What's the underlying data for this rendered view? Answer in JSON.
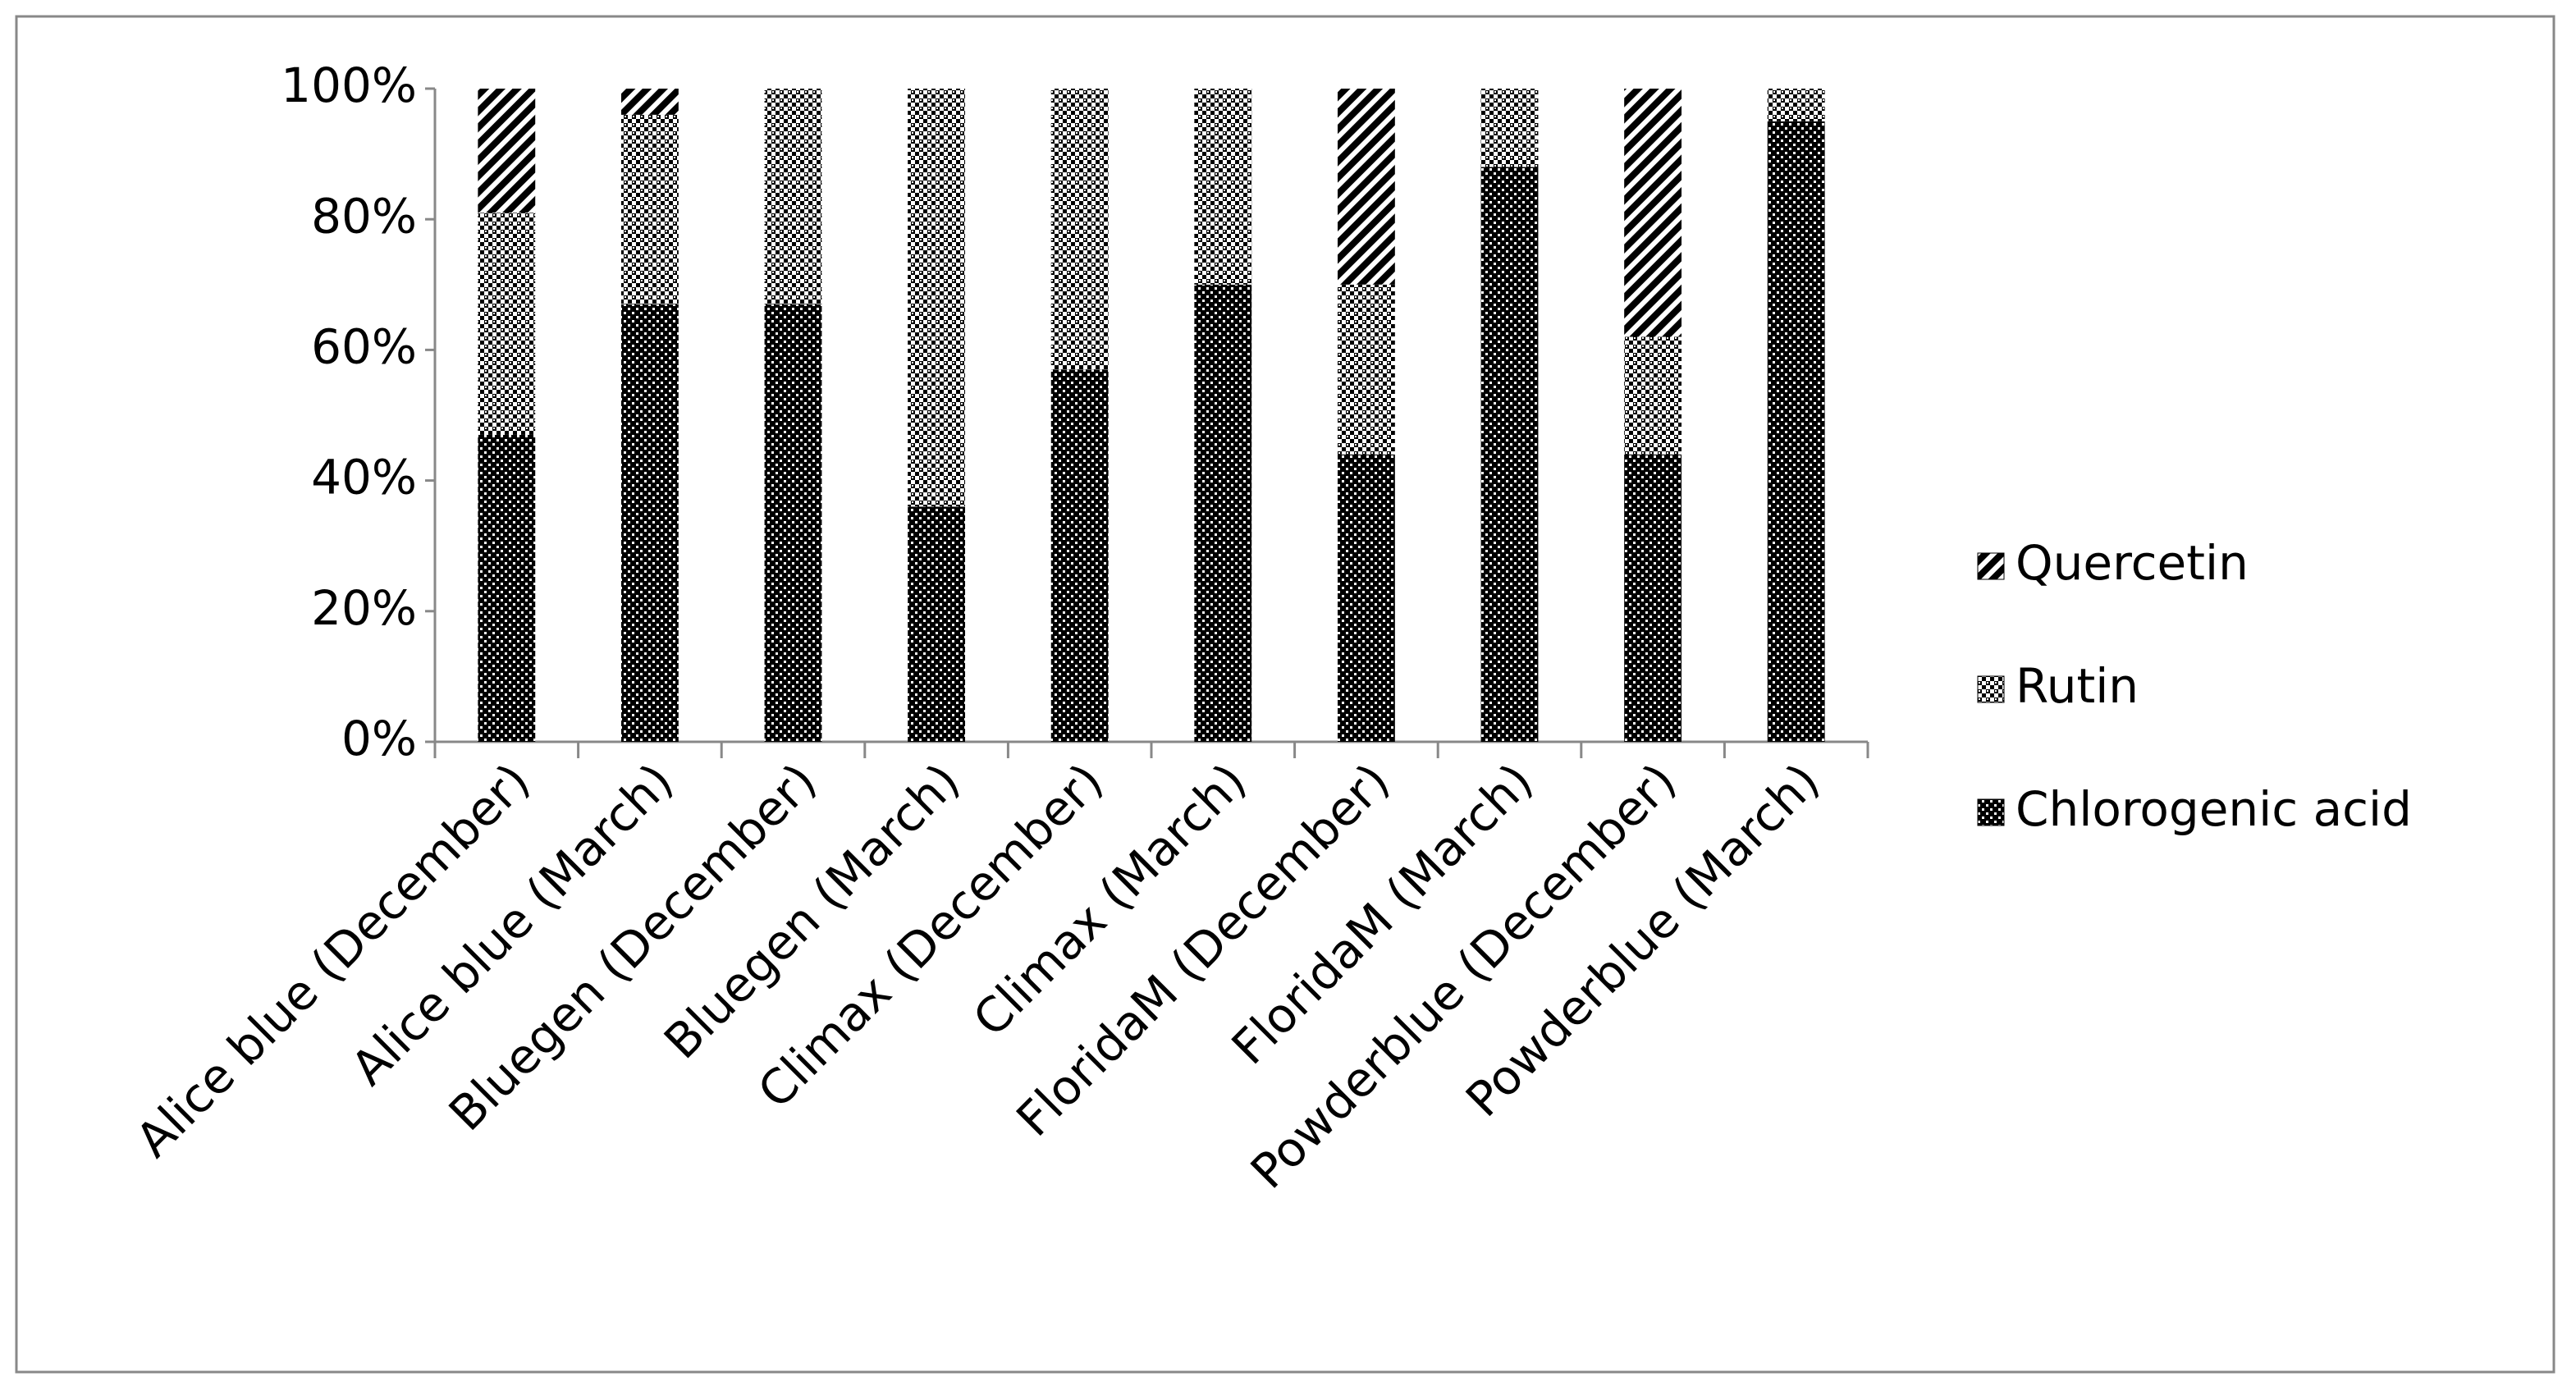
{
  "chart_data": {
    "type": "bar",
    "stacked": true,
    "categories": [
      "Alice blue (December)",
      "Alice blue (March)",
      "Bluegen (December)",
      "Bluegen (March)",
      "Climax (December)",
      "Climax (March)",
      "FloridaM (December)",
      "FloridaM (March)",
      "Powderblue (December)",
      "Powderblue (March)"
    ],
    "series": [
      {
        "name": "Chlorogenic acid",
        "color": "#000000",
        "pattern": "dense-checker",
        "values": [
          47,
          67,
          67,
          36,
          57,
          70,
          44,
          88,
          44,
          95
        ]
      },
      {
        "name": "Rutin",
        "color": "#000000",
        "pattern": "light-checker",
        "values": [
          34,
          29,
          33,
          64,
          43,
          30,
          26,
          12,
          18,
          5
        ]
      },
      {
        "name": "Quercetin",
        "color": "#000000",
        "pattern": "diagonal",
        "values": [
          19,
          4,
          0,
          0,
          0,
          0,
          30,
          0,
          38,
          0
        ]
      }
    ],
    "ylim": [
      0,
      100
    ],
    "yticks": [
      {
        "value": 0,
        "label": "0%"
      },
      {
        "value": 20,
        "label": "20%"
      },
      {
        "value": 40,
        "label": "40%"
      },
      {
        "value": 60,
        "label": "60%"
      },
      {
        "value": 80,
        "label": "80%"
      },
      {
        "value": 100,
        "label": "100%"
      }
    ],
    "grid": false,
    "legend": "right"
  }
}
